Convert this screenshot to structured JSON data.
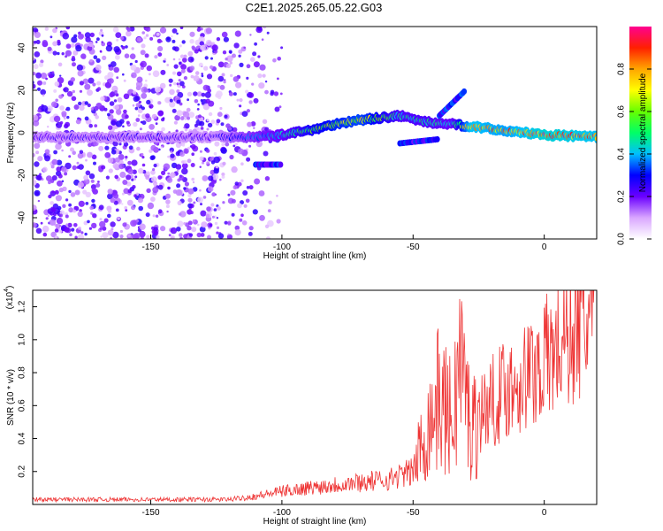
{
  "title": "C2E1.2025.265.05.22.G03",
  "chart_data": [
    {
      "type": "heatmap",
      "name": "spectrogram",
      "xlabel": "Height of straight line (km)",
      "ylabel": "Frequency (Hz)",
      "xlim": [
        -195,
        20
      ],
      "ylim": [
        -50,
        50
      ],
      "xticks": [
        -150,
        -100,
        -50,
        0
      ],
      "yticks": [
        -40,
        -20,
        0,
        20,
        40
      ],
      "colorbar": {
        "label": "Normalized spectral amplitude",
        "range": [
          0,
          1
        ],
        "ticks": [
          "0.0",
          "0.2",
          "0.4",
          "0.6",
          "0.8"
        ]
      },
      "ridge": [
        {
          "x": -195,
          "y": -2,
          "amp": 0.25
        },
        {
          "x": -150,
          "y": -2,
          "amp": 0.25
        },
        {
          "x": -125,
          "y": -2,
          "amp": 0.25
        },
        {
          "x": -110,
          "y": -2,
          "amp": 0.4
        },
        {
          "x": -100,
          "y": -1,
          "amp": 0.45
        },
        {
          "x": -90,
          "y": 1,
          "amp": 0.6
        },
        {
          "x": -80,
          "y": 4,
          "amp": 0.7
        },
        {
          "x": -70,
          "y": 6,
          "amp": 0.75
        },
        {
          "x": -55,
          "y": 8,
          "amp": 0.5
        },
        {
          "x": -45,
          "y": 5,
          "amp": 0.5
        },
        {
          "x": -35,
          "y": 4,
          "amp": 0.45
        },
        {
          "x": -28,
          "y": 3,
          "amp": 0.9
        },
        {
          "x": -15,
          "y": 1,
          "amp": 0.85
        },
        {
          "x": 0,
          "y": -1,
          "amp": 0.95
        },
        {
          "x": 20,
          "y": -2,
          "amp": 0.9
        }
      ],
      "branches": [
        {
          "x_start": -55,
          "y_start": -5,
          "x_end": -40,
          "y_end": -3,
          "amp": 0.3
        },
        {
          "x_start": -40,
          "y_start": 8,
          "x_end": -30,
          "y_end": 20,
          "amp": 0.3
        },
        {
          "x_start": -110,
          "y_start": -15,
          "x_end": -100,
          "y_end": -15,
          "amp": 0.3
        }
      ]
    },
    {
      "type": "line",
      "name": "snr",
      "xlabel": "Height of straight line (km)",
      "ylabel": "SNR (10 * v/v)",
      "scale_label": "(x10",
      "scale_exp": "4",
      "xlim": [
        -195,
        20
      ],
      "ylim": [
        0,
        1.3
      ],
      "xticks": [
        -150,
        -100,
        -50,
        0
      ],
      "yticks": [
        "0.2",
        "0.4",
        "0.6",
        "0.8",
        "1.0",
        "1.2"
      ],
      "color": "#ee3333",
      "trend": [
        {
          "x": -195,
          "y": 0.03
        },
        {
          "x": -120,
          "y": 0.03
        },
        {
          "x": -110,
          "y": 0.05
        },
        {
          "x": -100,
          "y": 0.08
        },
        {
          "x": -80,
          "y": 0.12
        },
        {
          "x": -60,
          "y": 0.15
        },
        {
          "x": -50,
          "y": 0.2
        },
        {
          "x": -45,
          "y": 0.45
        },
        {
          "x": -40,
          "y": 0.65
        },
        {
          "x": -35,
          "y": 0.5
        },
        {
          "x": -32,
          "y": 0.9
        },
        {
          "x": -28,
          "y": 0.45
        },
        {
          "x": -25,
          "y": 0.55
        },
        {
          "x": -15,
          "y": 0.7
        },
        {
          "x": -5,
          "y": 0.8
        },
        {
          "x": 5,
          "y": 0.95
        },
        {
          "x": 10,
          "y": 1.05
        },
        {
          "x": 20,
          "y": 1.15
        }
      ]
    }
  ]
}
